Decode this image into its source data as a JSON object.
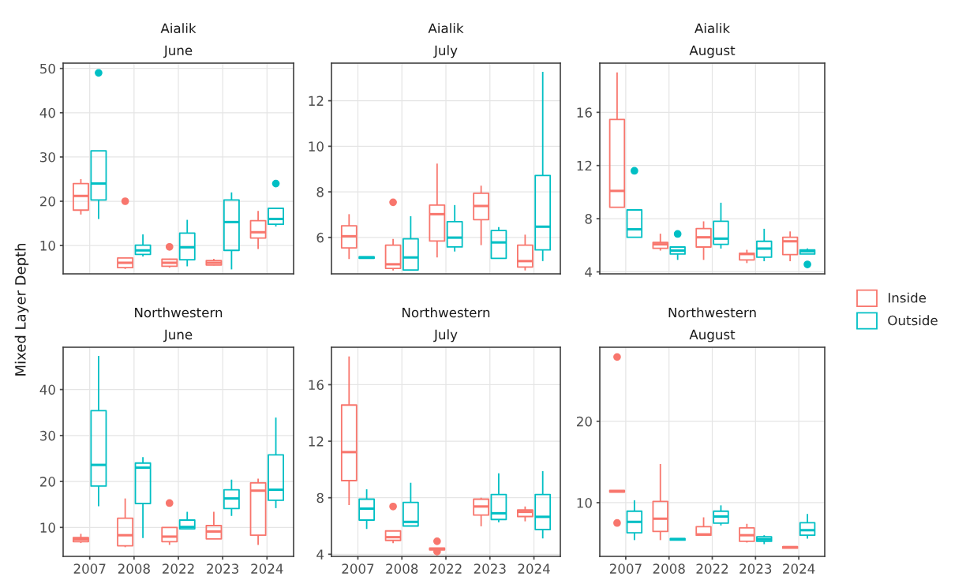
{
  "chart_data": [
    {
      "type": "box",
      "title": "Aialik",
      "subtitle": "June",
      "ylabel": "Mixed Layer Depth",
      "categories": [
        "2007",
        "2008",
        "2022",
        "2023",
        "2024"
      ],
      "ylim": [
        3.6,
        51.2
      ],
      "yticks": [
        10,
        20,
        30,
        40,
        50
      ],
      "grid": true,
      "tick_labels": "y",
      "legend": "right",
      "series": [
        {
          "name": "Inside",
          "color": "#f8766d",
          "boxes": [
            {
              "low": 17,
              "q1": 18,
              "median": 21.2,
              "q3": 24,
              "high": 25
            },
            {
              "low": 4.7,
              "q1": 5,
              "median": 6.1,
              "q3": 7.2,
              "high": 7.2,
              "outliers": [
                20
              ]
            },
            {
              "low": 5,
              "q1": 5.3,
              "median": 6.1,
              "q3": 6.9,
              "high": 7,
              "outliers": [
                9.7
              ]
            },
            {
              "low": 5.5,
              "q1": 5.6,
              "median": 6.1,
              "q3": 6.6,
              "high": 7
            },
            {
              "low": 9.2,
              "q1": 11.7,
              "median": 13,
              "q3": 15.6,
              "high": 17.8
            }
          ]
        },
        {
          "name": "Outside",
          "color": "#00bfc4",
          "boxes": [
            {
              "low": 16,
              "q1": 20.3,
              "median": 24,
              "q3": 31.4,
              "high": 31.4,
              "outliers": [
                49
              ]
            },
            {
              "low": 7.5,
              "q1": 8,
              "median": 8.9,
              "q3": 10.1,
              "high": 12.5
            },
            {
              "low": 5.3,
              "q1": 6.8,
              "median": 9.6,
              "q3": 12.8,
              "high": 15.8
            },
            {
              "low": 4.6,
              "q1": 8.9,
              "median": 15.3,
              "q3": 20.3,
              "high": 22
            },
            {
              "low": 14.3,
              "q1": 14.8,
              "median": 16,
              "q3": 18.4,
              "high": 18.4,
              "outliers": [
                24
              ]
            }
          ]
        }
      ]
    },
    {
      "type": "box",
      "title": "Aialik",
      "subtitle": "July",
      "categories": [
        "2007",
        "2008",
        "2022",
        "2023",
        "2024"
      ],
      "ylim": [
        4.4,
        13.65
      ],
      "yticks": [
        6,
        8,
        10,
        12
      ],
      "grid": true,
      "tick_labels": "y",
      "series": [
        {
          "color": "#f8766d",
          "boxes": [
            {
              "low": 5.05,
              "q1": 5.54,
              "median": 6.05,
              "q3": 6.51,
              "high": 7.02
            },
            {
              "low": 4.55,
              "q1": 4.64,
              "median": 4.82,
              "q3": 5.66,
              "high": 5.93,
              "outliers": [
                7.54
              ]
            },
            {
              "low": 5.12,
              "q1": 5.84,
              "median": 7.02,
              "q3": 7.42,
              "high": 9.24
            },
            {
              "low": 5.66,
              "q1": 6.78,
              "median": 7.38,
              "q3": 7.94,
              "high": 8.27
            },
            {
              "low": 4.55,
              "q1": 4.7,
              "median": 4.96,
              "q3": 5.66,
              "high": 6.12
            }
          ]
        },
        {
          "color": "#00bfc4",
          "boxes": [
            {
              "low": 5.08,
              "q1": 5.08,
              "median": 5.12,
              "q3": 5.15,
              "high": 5.15
            },
            {
              "low": 4.57,
              "q1": 4.57,
              "median": 5.12,
              "q3": 5.94,
              "high": 6.93
            },
            {
              "low": 5.38,
              "q1": 5.58,
              "median": 5.99,
              "q3": 6.69,
              "high": 7.42
            },
            {
              "low": 5.08,
              "q1": 5.08,
              "median": 5.78,
              "q3": 6.3,
              "high": 6.45
            },
            {
              "low": 4.96,
              "q1": 5.45,
              "median": 6.47,
              "q3": 8.72,
              "high": 13.27
            }
          ]
        }
      ]
    },
    {
      "type": "box",
      "title": "Aialik",
      "subtitle": "August",
      "categories": [
        "2007",
        "2008",
        "2022",
        "2023",
        "2024"
      ],
      "ylim": [
        3.85,
        19.7
      ],
      "yticks": [
        4,
        8,
        12,
        16
      ],
      "grid": true,
      "tick_labels": "y",
      "series": [
        {
          "color": "#f8766d",
          "boxes": [
            {
              "low": 8.86,
              "q1": 8.86,
              "median": 10.09,
              "q3": 15.46,
              "high": 19.0
            },
            {
              "low": 5.6,
              "q1": 5.77,
              "median": 6.07,
              "q3": 6.21,
              "high": 6.87
            },
            {
              "low": 4.9,
              "q1": 5.87,
              "median": 6.6,
              "q3": 7.26,
              "high": 7.8
            },
            {
              "low": 4.66,
              "q1": 4.9,
              "median": 5.34,
              "q3": 5.4,
              "high": 5.66
            },
            {
              "low": 4.8,
              "q1": 5.3,
              "median": 6.3,
              "q3": 6.6,
              "high": 7.04
            }
          ]
        },
        {
          "color": "#00bfc4",
          "boxes": [
            {
              "low": 6.6,
              "q1": 6.6,
              "median": 7.2,
              "q3": 8.66,
              "high": 8.66,
              "outliers": [
                11.6
              ]
            },
            {
              "low": 4.9,
              "q1": 5.34,
              "median": 5.6,
              "q3": 5.87,
              "high": 5.87,
              "outliers": [
                6.85
              ]
            },
            {
              "low": 5.75,
              "q1": 6.07,
              "median": 6.5,
              "q3": 7.8,
              "high": 9.2
            },
            {
              "low": 4.8,
              "q1": 5.1,
              "median": 5.75,
              "q3": 6.3,
              "high": 7.24
            },
            {
              "low": 5.34,
              "q1": 5.34,
              "median": 5.55,
              "q3": 5.65,
              "high": 5.77,
              "outliers": [
                4.56
              ]
            }
          ]
        }
      ]
    },
    {
      "type": "box",
      "title": "Northwestern",
      "subtitle": "June",
      "categories": [
        "2007",
        "2008",
        "2022",
        "2023",
        "2024"
      ],
      "ylim": [
        3.7,
        49.2
      ],
      "yticks": [
        10,
        20,
        30,
        40
      ],
      "grid": true,
      "series": [
        {
          "color": "#f8766d",
          "boxes": [
            {
              "low": 6.6,
              "q1": 6.9,
              "median": 7.4,
              "q3": 7.8,
              "high": 8.6
            },
            {
              "low": 5.7,
              "q1": 6,
              "median": 8.3,
              "q3": 12,
              "high": 16.3
            },
            {
              "low": 6.2,
              "q1": 6.9,
              "median": 8,
              "q3": 10,
              "high": 10,
              "outliers": [
                15.3
              ]
            },
            {
              "low": 7.5,
              "q1": 7.5,
              "median": 9.1,
              "q3": 10.4,
              "high": 13.4
            },
            {
              "low": 6.2,
              "q1": 8.3,
              "median": 18,
              "q3": 19.7,
              "high": 20.6
            }
          ]
        },
        {
          "color": "#00bfc4",
          "boxes": [
            {
              "low": 14.6,
              "q1": 19,
              "median": 23.6,
              "q3": 35.4,
              "high": 47.3
            },
            {
              "low": 7.7,
              "q1": 15.2,
              "median": 23,
              "q3": 24,
              "high": 25.3
            },
            {
              "low": 9.7,
              "q1": 9.7,
              "median": 10.1,
              "q3": 11.6,
              "high": 13.4
            },
            {
              "low": 12.5,
              "q1": 14.1,
              "median": 16.3,
              "q3": 18.2,
              "high": 20.4
            },
            {
              "low": 14.2,
              "q1": 15.9,
              "median": 18.2,
              "q3": 25.8,
              "high": 33.9
            }
          ]
        }
      ]
    },
    {
      "type": "box",
      "title": "Northwestern",
      "subtitle": "July",
      "categories": [
        "2007",
        "2008",
        "2022",
        "2023",
        "2024"
      ],
      "ylim": [
        3.85,
        18.65
      ],
      "yticks": [
        4,
        8,
        12,
        16
      ],
      "grid": true,
      "series": [
        {
          "color": "#f8766d",
          "boxes": [
            {
              "low": 7.48,
              "q1": 9.21,
              "median": 11.23,
              "q3": 14.56,
              "high": 18.0
            },
            {
              "low": 4.79,
              "q1": 4.98,
              "median": 5.21,
              "q3": 5.65,
              "high": 5.65,
              "outliers": [
                7.38
              ]
            },
            {
              "low": 4.31,
              "q1": 4.31,
              "median": 4.38,
              "q3": 4.44,
              "high": 4.44,
              "outliers": [
                4.92,
                4.19
              ]
            },
            {
              "low": 5.98,
              "q1": 6.77,
              "median": 7.38,
              "q3": 7.9,
              "high": 8.0
            },
            {
              "low": 6.33,
              "q1": 6.67,
              "median": 7.0,
              "q3": 7.13,
              "high": 7.38
            }
          ]
        },
        {
          "color": "#00bfc4",
          "boxes": [
            {
              "low": 5.79,
              "q1": 6.42,
              "median": 7.23,
              "q3": 7.9,
              "high": 8.6
            },
            {
              "low": 6.0,
              "q1": 6.0,
              "median": 6.29,
              "q3": 7.67,
              "high": 9.06
            },
            null,
            {
              "low": 6.27,
              "q1": 6.46,
              "median": 6.9,
              "q3": 8.23,
              "high": 9.73
            },
            {
              "low": 5.12,
              "q1": 5.75,
              "median": 6.65,
              "q3": 8.23,
              "high": 9.88
            }
          ]
        }
      ]
    },
    {
      "type": "box",
      "title": "Northwestern",
      "subtitle": "August",
      "categories": [
        "2007",
        "2008",
        "2022",
        "2023",
        "2024"
      ],
      "ylim": [
        3.4,
        29.1
      ],
      "yticks": [
        10,
        20
      ],
      "grid": true,
      "series": [
        {
          "color": "#f8766d",
          "boxes": [
            {
              "low": 11.3,
              "q1": 11.3,
              "median": 11.4,
              "q3": 11.5,
              "high": 11.5,
              "outliers": [
                27.9,
                7.5
              ]
            },
            {
              "low": 5.4,
              "q1": 6.46,
              "median": 8.03,
              "q3": 10.16,
              "high": 14.75
            },
            {
              "low": 6.0,
              "q1": 6.0,
              "median": 6.1,
              "q3": 7.05,
              "high": 8.2
            },
            {
              "low": 5.1,
              "q1": 5.25,
              "median": 6.0,
              "q3": 6.9,
              "high": 7.4
            },
            {
              "low": 4.4,
              "q1": 4.4,
              "median": 4.52,
              "q3": 4.6,
              "high": 4.6
            }
          ]
        },
        {
          "color": "#00bfc4",
          "boxes": [
            {
              "low": 5.4,
              "q1": 6.3,
              "median": 7.64,
              "q3": 8.95,
              "high": 10.3
            },
            {
              "low": 5.4,
              "q1": 5.4,
              "median": 5.5,
              "q3": 5.6,
              "high": 5.6
            },
            {
              "low": 7.2,
              "q1": 7.48,
              "median": 8.3,
              "q3": 8.95,
              "high": 9.67
            },
            {
              "low": 4.9,
              "q1": 5.25,
              "median": 5.5,
              "q3": 5.8,
              "high": 6.0
            },
            {
              "low": 5.57,
              "q1": 6.0,
              "median": 6.62,
              "q3": 7.54,
              "high": 8.62
            }
          ]
        }
      ]
    }
  ]
}
